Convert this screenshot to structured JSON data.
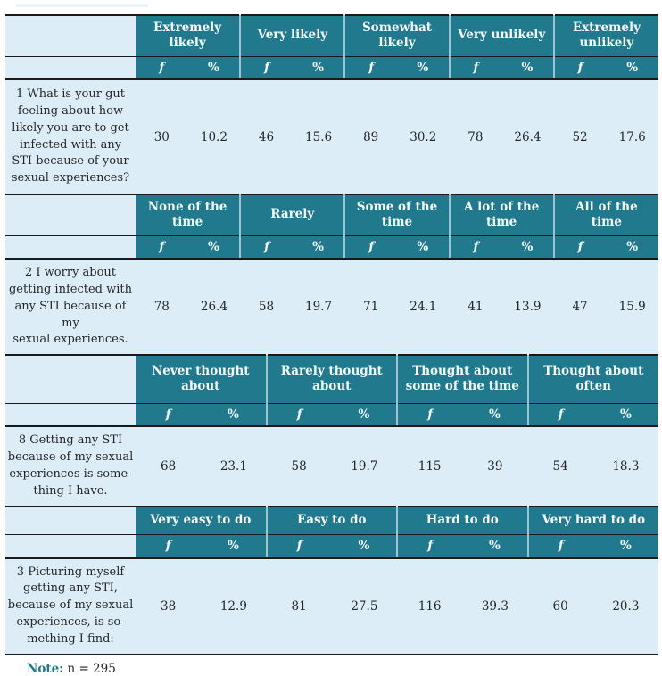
{
  "labels": {
    "f": "f",
    "pct": "%"
  },
  "sections": [
    {
      "categories": [
        "Extremely likely",
        "Very likely",
        "Somewhat likely",
        "Very unlikely",
        "Extremely unlikely"
      ],
      "question": "1 What is your gut\nfeeling about how\nlikely you are to get\ninfected with any\nSTI because of your\nsexual experiences?",
      "values": [
        "30",
        "10.2",
        "46",
        "15.6",
        "89",
        "30.2",
        "78",
        "26.4",
        "52",
        "17.6"
      ]
    },
    {
      "categories": [
        "None of the time",
        "Rarely",
        "Some of the time",
        "A lot of the time",
        "All of the time"
      ],
      "question": "2 I worry about\ngetting infected with\nany STI because of my\nsexual experiences.",
      "values": [
        "78",
        "26.4",
        "58",
        "19.7",
        "71",
        "24.1",
        "41",
        "13.9",
        "47",
        "15.9"
      ]
    },
    {
      "categories": [
        "Never thought about",
        "Rarely thought about",
        "Thought about some of the time",
        "Thought about often"
      ],
      "question": "8 Getting any STI\nbecause of my sexual\nexperiences is some-\nthing I have.",
      "values": [
        "68",
        "23.1",
        "58",
        "19.7",
        "115",
        "39",
        "54",
        "18.3"
      ]
    },
    {
      "categories": [
        "Very easy to do",
        "Easy to do",
        "Hard to do",
        "Very hard to do"
      ],
      "question": "3 Picturing myself\ngetting any STI,\nbecause of my sexual\nexperiences, is so-\nmething I find:",
      "values": [
        "38",
        "12.9",
        "81",
        "27.5",
        "116",
        "39.3",
        "60",
        "20.3"
      ]
    }
  ],
  "note": {
    "label": "Note:",
    "text": "n = 295"
  }
}
